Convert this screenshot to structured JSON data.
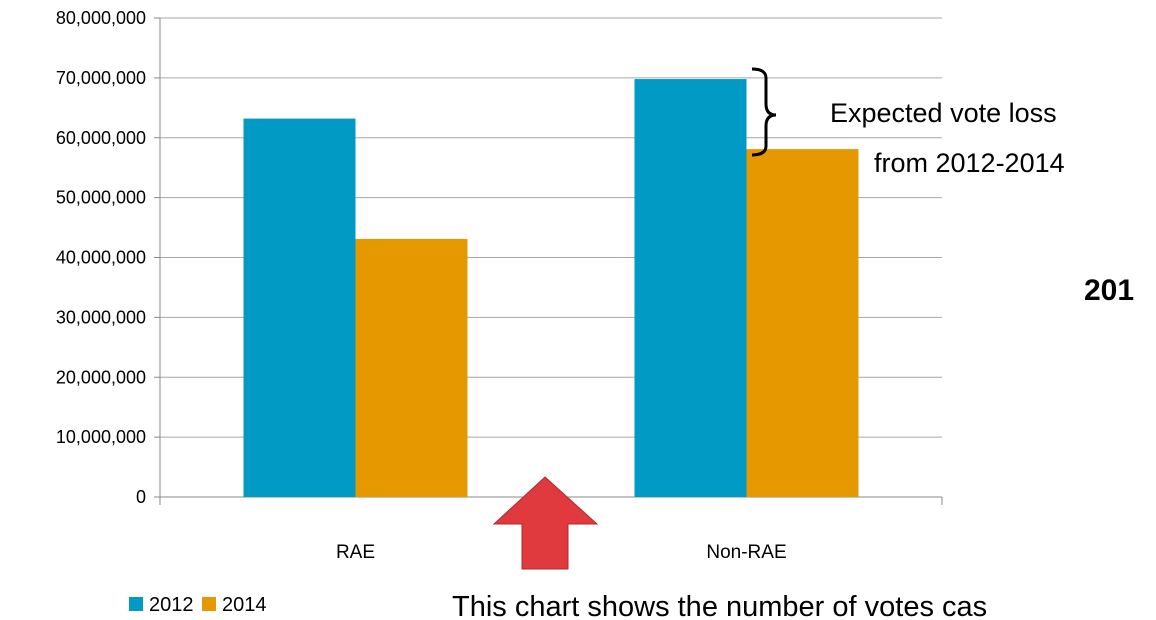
{
  "chart_data": {
    "type": "bar",
    "categories": [
      "RAE",
      "Non-RAE"
    ],
    "series": [
      {
        "name": "2012",
        "values": [
          63200000,
          69800000
        ],
        "color": "#009ac4"
      },
      {
        "name": "2014",
        "values": [
          43100000,
          58100000
        ],
        "color": "#e59800"
      }
    ],
    "ylim": [
      0,
      80000000
    ],
    "yticks": [
      0,
      10000000,
      20000000,
      30000000,
      40000000,
      50000000,
      60000000,
      70000000,
      80000000
    ],
    "ytick_labels": [
      "0",
      "10,000,000",
      "20,000,000",
      "30,000,000",
      "40,000,000",
      "50,000,000",
      "60,000,000",
      "70,000,000",
      "80,000,000"
    ],
    "grid": true,
    "legend": "bottom-left",
    "xlabel": "",
    "ylabel": ""
  },
  "annotation": {
    "line1": "Expected vote loss",
    "line2": "from 2012-2014"
  },
  "clipped_text": "201",
  "caption": "This chart shows the number of votes cas",
  "arrow_color": "#e0393e"
}
